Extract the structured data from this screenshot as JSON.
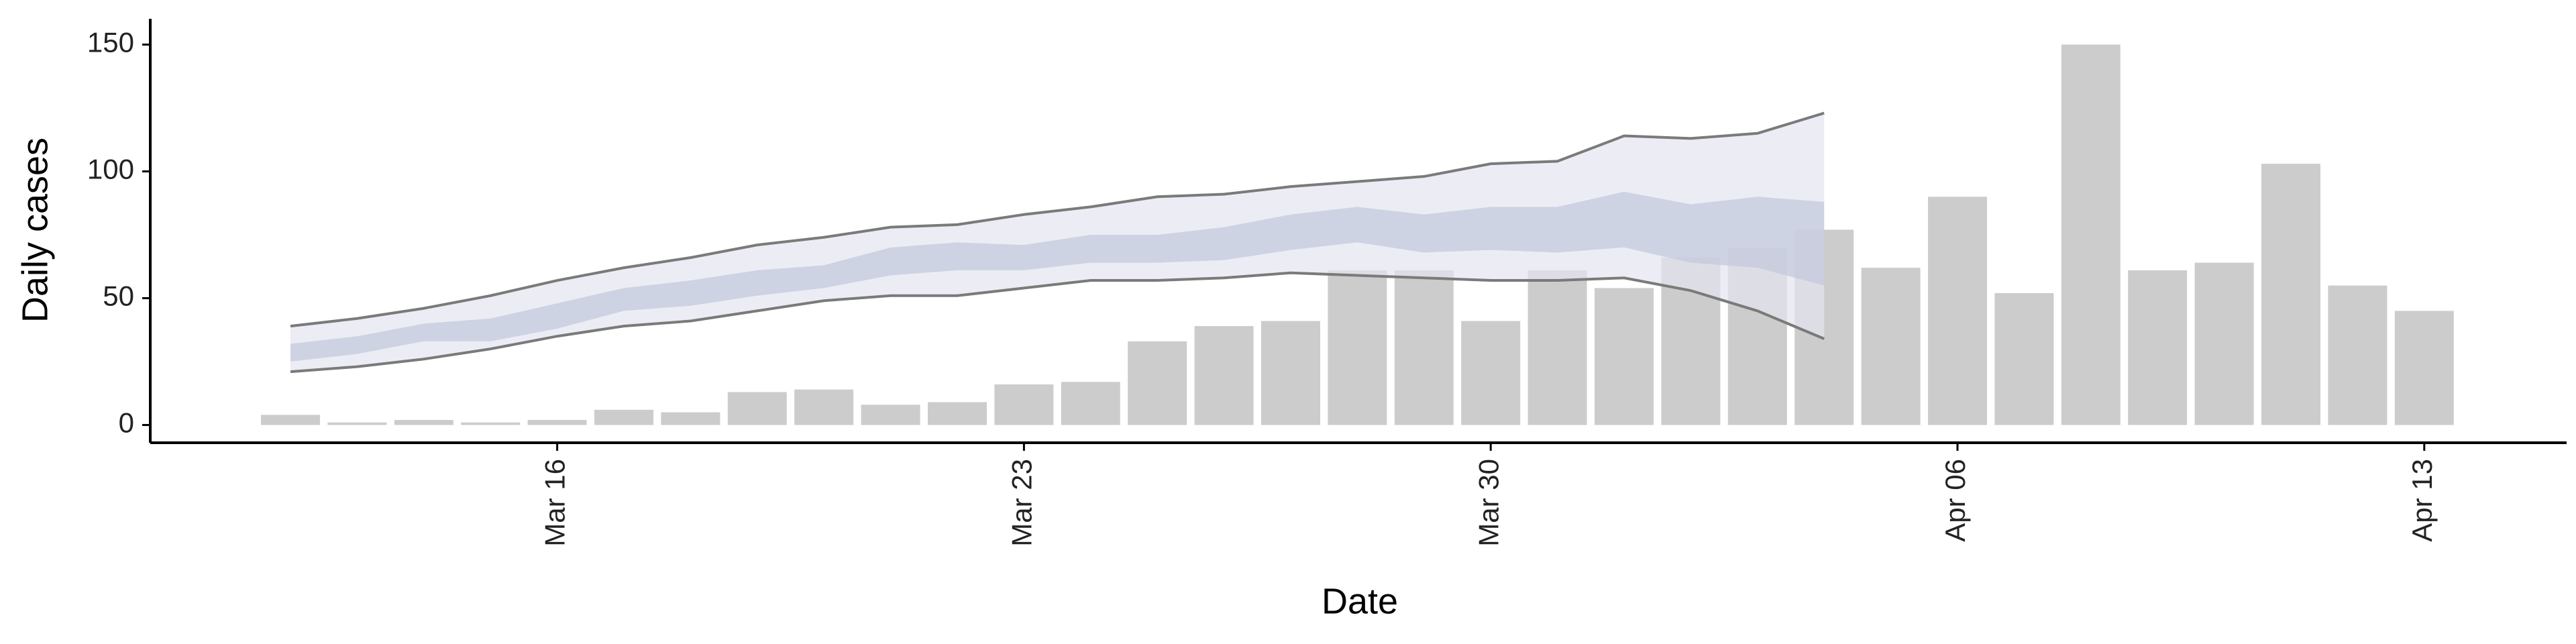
{
  "chart_data": {
    "type": "bar",
    "xlabel": "Date",
    "ylabel": "Daily cases",
    "x": [
      "Mar 12",
      "Mar 13",
      "Mar 14",
      "Mar 15",
      "Mar 16",
      "Mar 17",
      "Mar 18",
      "Mar 19",
      "Mar 20",
      "Mar 21",
      "Mar 22",
      "Mar 23",
      "Mar 24",
      "Mar 25",
      "Mar 26",
      "Mar 27",
      "Mar 28",
      "Mar 29",
      "Mar 30",
      "Mar 31",
      "Apr 01",
      "Apr 02",
      "Apr 03",
      "Apr 04",
      "Apr 05",
      "Apr 06",
      "Apr 07",
      "Apr 08",
      "Apr 09",
      "Apr 10",
      "Apr 11",
      "Apr 12",
      "Apr 13"
    ],
    "values": [
      4,
      1,
      2,
      1,
      2,
      6,
      5,
      13,
      14,
      8,
      9,
      16,
      17,
      33,
      39,
      41,
      61,
      61,
      41,
      61,
      54,
      66,
      70,
      77,
      62,
      90,
      52,
      150,
      61,
      64,
      103,
      55,
      45
    ],
    "color": "#cccccc",
    "bands": [
      {
        "upper": [
          39,
          42,
          46,
          51,
          57,
          62,
          66,
          71,
          74,
          78,
          79,
          83,
          86,
          90,
          91,
          94,
          96,
          98,
          103,
          104,
          114,
          113,
          115,
          123,
          null,
          null,
          null,
          null,
          null,
          null,
          null,
          null,
          null
        ],
        "lower": [
          21,
          23,
          26,
          30,
          35,
          39,
          41,
          45,
          49,
          51,
          51,
          54,
          57,
          57,
          58,
          60,
          59,
          58,
          57,
          57,
          58,
          53,
          45,
          34,
          null,
          null,
          null,
          null,
          null,
          null,
          null,
          null,
          null
        ],
        "color": "#e4e6f0",
        "line_color": "#7a7a7a"
      },
      {
        "upper": [
          32,
          35,
          40,
          42,
          48,
          54,
          57,
          61,
          63,
          70,
          72,
          71,
          75,
          75,
          78,
          83,
          86,
          83,
          86,
          86,
          92,
          87,
          90,
          88,
          null,
          null,
          null,
          null,
          null,
          null,
          null,
          null,
          null
        ],
        "lower": [
          25,
          28,
          33,
          33,
          38,
          45,
          47,
          51,
          54,
          59,
          61,
          61,
          64,
          64,
          65,
          69,
          72,
          68,
          69,
          68,
          70,
          64,
          62,
          55,
          null,
          null,
          null,
          null,
          null,
          null,
          null,
          null,
          null
        ],
        "color": "#c2c7dc"
      }
    ],
    "xticks": [
      "Mar 16",
      "Mar 23",
      "Mar 30",
      "Apr 06",
      "Apr 13"
    ],
    "ylim": [
      -7,
      157
    ],
    "yticks": [
      0,
      50,
      100,
      150
    ]
  }
}
